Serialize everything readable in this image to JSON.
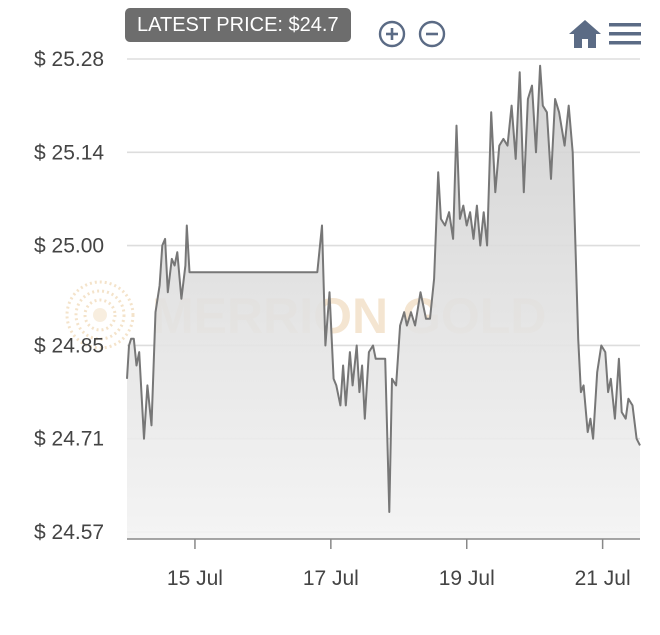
{
  "toolbar": {
    "latest_price_label": "LATEST PRICE: $24.7",
    "zoom_in_icon": "plus-circle-icon",
    "zoom_out_icon": "minus-circle-icon",
    "home_icon": "home-icon",
    "menu_icon": "hamburger-menu-icon"
  },
  "watermark": {
    "text": "MERRION GOLD"
  },
  "colors": {
    "line": "#777777",
    "area_top": "#cfcfcf",
    "area_bottom": "#f3f3f3",
    "grid": "#dddddd",
    "icon": "#5b6b85",
    "badge": "#6d6d6d"
  },
  "chart_data": {
    "type": "area",
    "title": "",
    "xlabel": "",
    "ylabel": "",
    "x_ticks": [
      "15 Jul",
      "17 Jul",
      "19 Jul",
      "21 Jul"
    ],
    "y_ticks": [
      "$ 25.28",
      "$ 25.14",
      "$ 25.00",
      "$ 24.85",
      "$ 24.71",
      "$ 24.57"
    ],
    "y_tick_values": [
      25.28,
      25.14,
      25.0,
      24.85,
      24.71,
      24.57
    ],
    "ylim": [
      24.57,
      25.28
    ],
    "x_unit": "days since 14 Jul 00:00 (approx.)",
    "xlim": [
      0,
      7.55
    ],
    "x_tick_positions": [
      1,
      3,
      5,
      7
    ],
    "grid": true,
    "series": [
      {
        "name": "",
        "points": [
          [
            0.0,
            24.8
          ],
          [
            0.03,
            24.85
          ],
          [
            0.06,
            24.86
          ],
          [
            0.1,
            24.86
          ],
          [
            0.14,
            24.82
          ],
          [
            0.18,
            24.84
          ],
          [
            0.25,
            24.71
          ],
          [
            0.3,
            24.79
          ],
          [
            0.36,
            24.73
          ],
          [
            0.42,
            24.9
          ],
          [
            0.48,
            24.94
          ],
          [
            0.52,
            25.0
          ],
          [
            0.56,
            25.01
          ],
          [
            0.6,
            24.93
          ],
          [
            0.66,
            24.98
          ],
          [
            0.7,
            24.97
          ],
          [
            0.74,
            24.99
          ],
          [
            0.8,
            24.92
          ],
          [
            0.86,
            24.97
          ],
          [
            0.88,
            25.03
          ],
          [
            0.92,
            24.96
          ],
          [
            1.0,
            24.96
          ],
          [
            2.0,
            24.96
          ],
          [
            2.8,
            24.96
          ],
          [
            2.87,
            25.03
          ],
          [
            2.92,
            24.85
          ],
          [
            2.98,
            24.93
          ],
          [
            3.04,
            24.8
          ],
          [
            3.08,
            24.79
          ],
          [
            3.14,
            24.76
          ],
          [
            3.18,
            24.82
          ],
          [
            3.22,
            24.76
          ],
          [
            3.28,
            24.84
          ],
          [
            3.32,
            24.79
          ],
          [
            3.38,
            24.85
          ],
          [
            3.42,
            24.78
          ],
          [
            3.46,
            24.82
          ],
          [
            3.5,
            24.74
          ],
          [
            3.56,
            24.84
          ],
          [
            3.62,
            24.85
          ],
          [
            3.66,
            24.83
          ],
          [
            3.74,
            24.83
          ],
          [
            3.8,
            24.83
          ],
          [
            3.86,
            24.6
          ],
          [
            3.9,
            24.8
          ],
          [
            3.96,
            24.79
          ],
          [
            4.02,
            24.88
          ],
          [
            4.08,
            24.9
          ],
          [
            4.12,
            24.88
          ],
          [
            4.18,
            24.9
          ],
          [
            4.24,
            24.88
          ],
          [
            4.32,
            24.93
          ],
          [
            4.4,
            24.89
          ],
          [
            4.46,
            24.89
          ],
          [
            4.52,
            24.95
          ],
          [
            4.58,
            25.11
          ],
          [
            4.62,
            25.04
          ],
          [
            4.68,
            25.03
          ],
          [
            4.74,
            25.05
          ],
          [
            4.8,
            25.01
          ],
          [
            4.85,
            25.18
          ],
          [
            4.9,
            25.04
          ],
          [
            4.95,
            25.06
          ],
          [
            5.0,
            25.03
          ],
          [
            5.05,
            25.05
          ],
          [
            5.1,
            25.01
          ],
          [
            5.15,
            25.06
          ],
          [
            5.2,
            25.0
          ],
          [
            5.25,
            25.05
          ],
          [
            5.3,
            25.0
          ],
          [
            5.36,
            25.2
          ],
          [
            5.42,
            25.08
          ],
          [
            5.48,
            25.15
          ],
          [
            5.54,
            25.16
          ],
          [
            5.6,
            25.15
          ],
          [
            5.66,
            25.21
          ],
          [
            5.72,
            25.13
          ],
          [
            5.78,
            25.26
          ],
          [
            5.84,
            25.08
          ],
          [
            5.9,
            25.22
          ],
          [
            5.96,
            25.24
          ],
          [
            6.02,
            25.14
          ],
          [
            6.08,
            25.27
          ],
          [
            6.12,
            25.21
          ],
          [
            6.18,
            25.2
          ],
          [
            6.24,
            25.1
          ],
          [
            6.3,
            25.22
          ],
          [
            6.36,
            25.2
          ],
          [
            6.44,
            25.15
          ],
          [
            6.5,
            25.21
          ],
          [
            6.56,
            25.14
          ],
          [
            6.64,
            24.86
          ],
          [
            6.68,
            24.78
          ],
          [
            6.72,
            24.79
          ],
          [
            6.78,
            24.72
          ],
          [
            6.82,
            24.74
          ],
          [
            6.86,
            24.71
          ],
          [
            6.92,
            24.81
          ],
          [
            6.98,
            24.85
          ],
          [
            7.04,
            24.84
          ],
          [
            7.08,
            24.78
          ],
          [
            7.12,
            24.8
          ],
          [
            7.18,
            24.74
          ],
          [
            7.24,
            24.83
          ],
          [
            7.28,
            24.75
          ],
          [
            7.34,
            24.74
          ],
          [
            7.38,
            24.77
          ],
          [
            7.44,
            24.76
          ],
          [
            7.5,
            24.71
          ],
          [
            7.55,
            24.7
          ]
        ]
      }
    ]
  }
}
